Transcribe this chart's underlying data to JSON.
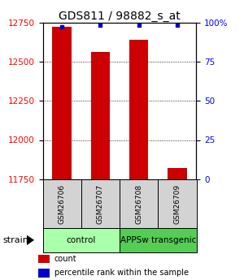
{
  "title": "GDS811 / 98882_s_at",
  "samples": [
    "GSM26706",
    "GSM26707",
    "GSM26708",
    "GSM26709"
  ],
  "count_values": [
    12720,
    12560,
    12640,
    11820
  ],
  "percentile_values": [
    97,
    98,
    98,
    98
  ],
  "ymin": 11750,
  "ymax": 12750,
  "yticks_left": [
    11750,
    12000,
    12250,
    12500,
    12750
  ],
  "yticks_right": [
    0,
    25,
    50,
    75,
    100
  ],
  "bar_color": "#cc0000",
  "dot_color": "#0000cc",
  "bar_width": 0.5,
  "groups": [
    {
      "label": "control",
      "color": "#aaffaa",
      "xstart": -0.5,
      "xend": 1.5
    },
    {
      "label": "APPSw transgenic",
      "color": "#55cc55",
      "xstart": 1.5,
      "xend": 3.5
    }
  ],
  "strain_label": "strain",
  "legend_count_label": "count",
  "legend_pct_label": "percentile rank within the sample",
  "title_fontsize": 10,
  "tick_fontsize": 7.5,
  "sample_fontsize": 6.5,
  "group_fontsize": 7.5,
  "legend_fontsize": 7
}
